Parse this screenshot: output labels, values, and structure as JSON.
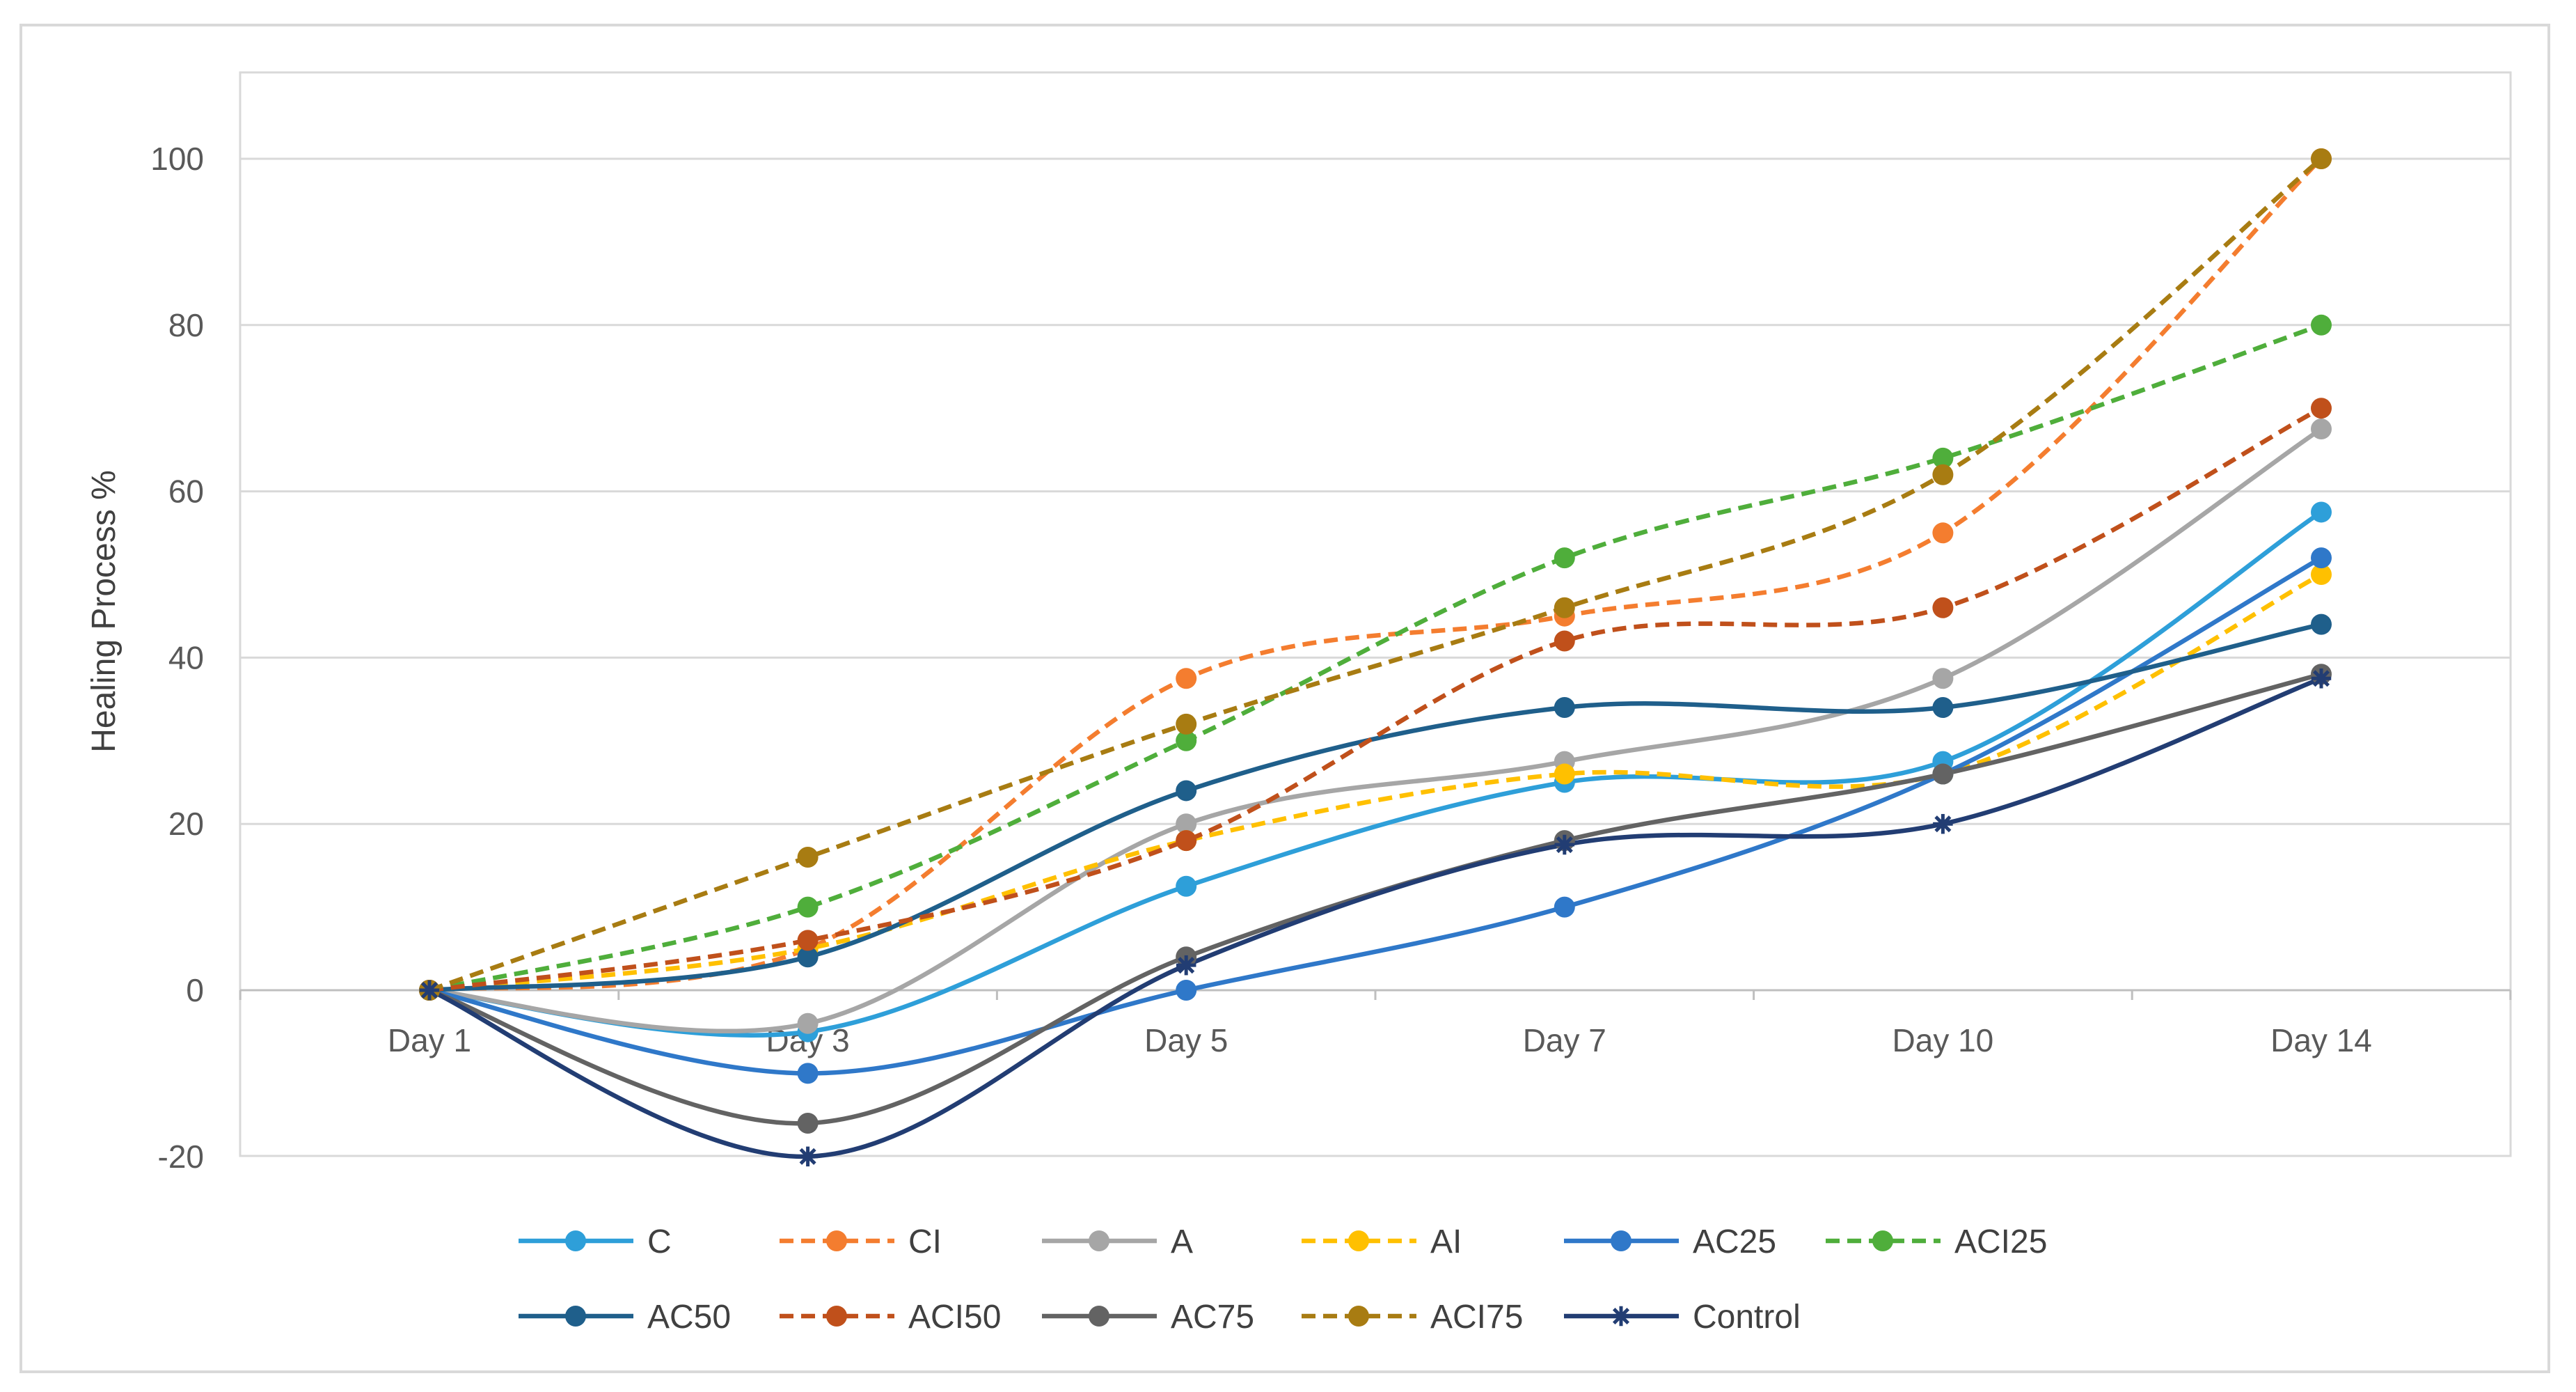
{
  "chart_data": {
    "type": "line",
    "title": "",
    "xlabel": "",
    "ylabel": "Healing Process %",
    "categories": [
      "Day 1",
      "Day 3",
      "Day 5",
      "Day 7",
      "Day 10",
      "Day 14"
    ],
    "ylim": [
      -20,
      110
    ],
    "yticks": [
      -20,
      0,
      20,
      40,
      60,
      80,
      100
    ],
    "grid": "horizontal",
    "legend_position": "bottom",
    "series": [
      {
        "name": "C",
        "color": "#2e9fd9",
        "dashed": false,
        "marker": "circle",
        "values": [
          0,
          -5,
          12.5,
          25,
          27.5,
          57.5
        ]
      },
      {
        "name": "CI",
        "color": "#f47d2f",
        "dashed": true,
        "marker": "circle",
        "values": [
          0,
          5,
          37.5,
          45,
          55,
          100
        ]
      },
      {
        "name": "A",
        "color": "#a6a6a6",
        "dashed": false,
        "marker": "circle",
        "values": [
          0,
          -4,
          20,
          27.5,
          37.5,
          67.5
        ]
      },
      {
        "name": "AI",
        "color": "#ffc000",
        "dashed": true,
        "marker": "circle",
        "values": [
          0,
          5,
          18,
          26,
          26,
          50
        ]
      },
      {
        "name": "AC25",
        "color": "#2f78c9",
        "dashed": false,
        "marker": "circle",
        "values": [
          0,
          -10,
          0,
          10,
          26,
          52
        ]
      },
      {
        "name": "ACI25",
        "color": "#4fae3b",
        "dashed": true,
        "marker": "circle",
        "values": [
          0,
          10,
          30,
          52,
          64,
          80
        ]
      },
      {
        "name": "AC50",
        "color": "#1f5f8b",
        "dashed": false,
        "marker": "circle",
        "values": [
          0,
          4,
          24,
          34,
          34,
          44
        ]
      },
      {
        "name": "ACI50",
        "color": "#c0501b",
        "dashed": true,
        "marker": "circle",
        "values": [
          0,
          6,
          18,
          42,
          46,
          70
        ]
      },
      {
        "name": "AC75",
        "color": "#636363",
        "dashed": false,
        "marker": "circle",
        "values": [
          0,
          -16,
          4,
          18,
          26,
          38
        ]
      },
      {
        "name": "ACI75",
        "color": "#a87c12",
        "dashed": true,
        "marker": "circle",
        "values": [
          0,
          16,
          32,
          46,
          62,
          100
        ]
      },
      {
        "name": "Control",
        "color": "#223d73",
        "dashed": false,
        "marker": "asterisk",
        "values": [
          0,
          -20,
          3,
          17.5,
          20,
          37.5
        ]
      }
    ]
  }
}
